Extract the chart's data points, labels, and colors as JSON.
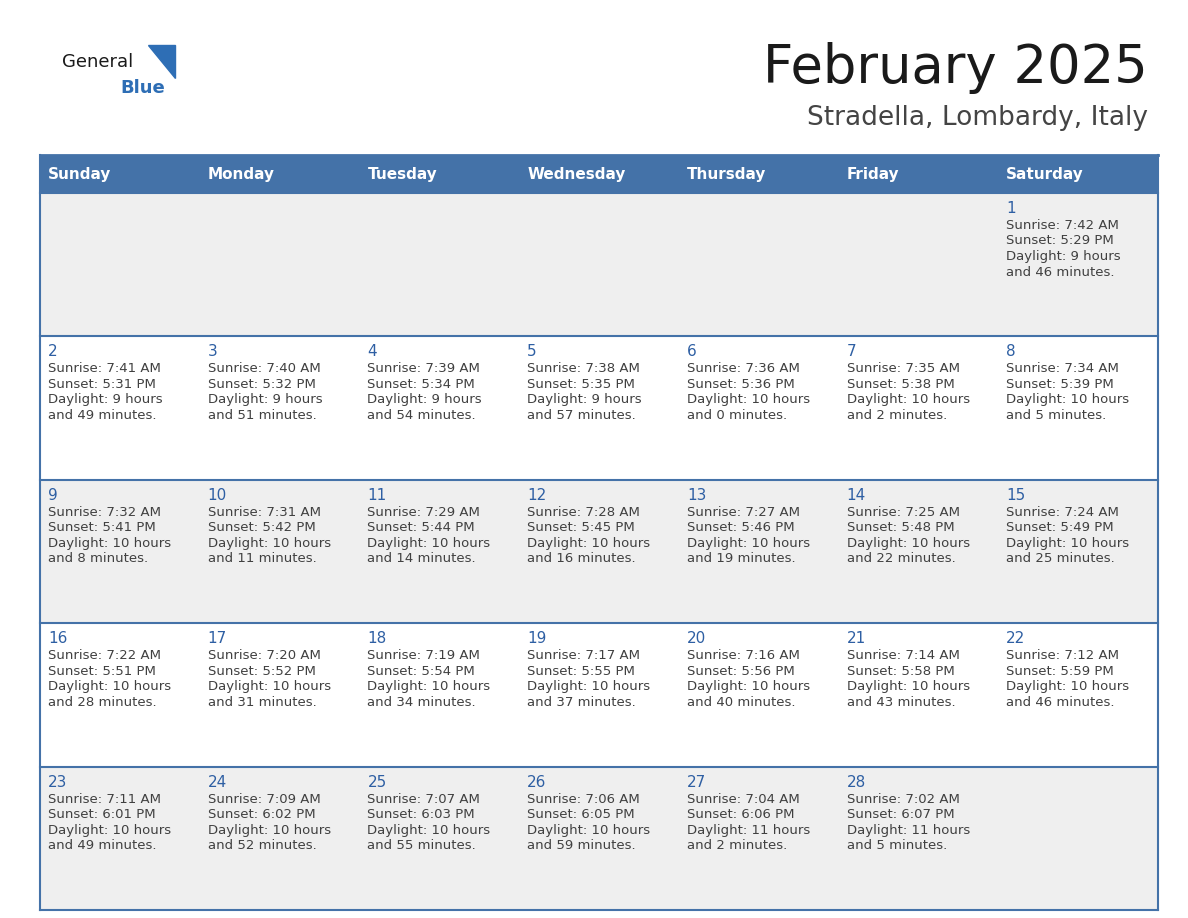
{
  "title": "February 2025",
  "subtitle": "Stradella, Lombardy, Italy",
  "days_of_week": [
    "Sunday",
    "Monday",
    "Tuesday",
    "Wednesday",
    "Thursday",
    "Friday",
    "Saturday"
  ],
  "header_bg": "#4472a8",
  "header_text": "#ffffff",
  "cell_bg_odd": "#efefef",
  "cell_bg_even": "#ffffff",
  "day_text_color": "#2e5fa3",
  "info_text_color": "#404040",
  "border_color": "#4472a8",
  "title_color": "#1a1a1a",
  "subtitle_color": "#444444",
  "logo_general_color": "#1a1a1a",
  "logo_blue_color": "#2e6eb5",
  "logo_triangle_color": "#2e6eb5",
  "calendar_data": [
    [
      null,
      null,
      null,
      null,
      null,
      null,
      {
        "day": "1",
        "sunrise": "7:42 AM",
        "sunset": "5:29 PM",
        "daylight": "9 hours",
        "daylight2": "and 46 minutes."
      }
    ],
    [
      {
        "day": "2",
        "sunrise": "7:41 AM",
        "sunset": "5:31 PM",
        "daylight": "9 hours",
        "daylight2": "and 49 minutes."
      },
      {
        "day": "3",
        "sunrise": "7:40 AM",
        "sunset": "5:32 PM",
        "daylight": "9 hours",
        "daylight2": "and 51 minutes."
      },
      {
        "day": "4",
        "sunrise": "7:39 AM",
        "sunset": "5:34 PM",
        "daylight": "9 hours",
        "daylight2": "and 54 minutes."
      },
      {
        "day": "5",
        "sunrise": "7:38 AM",
        "sunset": "5:35 PM",
        "daylight": "9 hours",
        "daylight2": "and 57 minutes."
      },
      {
        "day": "6",
        "sunrise": "7:36 AM",
        "sunset": "5:36 PM",
        "daylight": "10 hours",
        "daylight2": "and 0 minutes."
      },
      {
        "day": "7",
        "sunrise": "7:35 AM",
        "sunset": "5:38 PM",
        "daylight": "10 hours",
        "daylight2": "and 2 minutes."
      },
      {
        "day": "8",
        "sunrise": "7:34 AM",
        "sunset": "5:39 PM",
        "daylight": "10 hours",
        "daylight2": "and 5 minutes."
      }
    ],
    [
      {
        "day": "9",
        "sunrise": "7:32 AM",
        "sunset": "5:41 PM",
        "daylight": "10 hours",
        "daylight2": "and 8 minutes."
      },
      {
        "day": "10",
        "sunrise": "7:31 AM",
        "sunset": "5:42 PM",
        "daylight": "10 hours",
        "daylight2": "and 11 minutes."
      },
      {
        "day": "11",
        "sunrise": "7:29 AM",
        "sunset": "5:44 PM",
        "daylight": "10 hours",
        "daylight2": "and 14 minutes."
      },
      {
        "day": "12",
        "sunrise": "7:28 AM",
        "sunset": "5:45 PM",
        "daylight": "10 hours",
        "daylight2": "and 16 minutes."
      },
      {
        "day": "13",
        "sunrise": "7:27 AM",
        "sunset": "5:46 PM",
        "daylight": "10 hours",
        "daylight2": "and 19 minutes."
      },
      {
        "day": "14",
        "sunrise": "7:25 AM",
        "sunset": "5:48 PM",
        "daylight": "10 hours",
        "daylight2": "and 22 minutes."
      },
      {
        "day": "15",
        "sunrise": "7:24 AM",
        "sunset": "5:49 PM",
        "daylight": "10 hours",
        "daylight2": "and 25 minutes."
      }
    ],
    [
      {
        "day": "16",
        "sunrise": "7:22 AM",
        "sunset": "5:51 PM",
        "daylight": "10 hours",
        "daylight2": "and 28 minutes."
      },
      {
        "day": "17",
        "sunrise": "7:20 AM",
        "sunset": "5:52 PM",
        "daylight": "10 hours",
        "daylight2": "and 31 minutes."
      },
      {
        "day": "18",
        "sunrise": "7:19 AM",
        "sunset": "5:54 PM",
        "daylight": "10 hours",
        "daylight2": "and 34 minutes."
      },
      {
        "day": "19",
        "sunrise": "7:17 AM",
        "sunset": "5:55 PM",
        "daylight": "10 hours",
        "daylight2": "and 37 minutes."
      },
      {
        "day": "20",
        "sunrise": "7:16 AM",
        "sunset": "5:56 PM",
        "daylight": "10 hours",
        "daylight2": "and 40 minutes."
      },
      {
        "day": "21",
        "sunrise": "7:14 AM",
        "sunset": "5:58 PM",
        "daylight": "10 hours",
        "daylight2": "and 43 minutes."
      },
      {
        "day": "22",
        "sunrise": "7:12 AM",
        "sunset": "5:59 PM",
        "daylight": "10 hours",
        "daylight2": "and 46 minutes."
      }
    ],
    [
      {
        "day": "23",
        "sunrise": "7:11 AM",
        "sunset": "6:01 PM",
        "daylight": "10 hours",
        "daylight2": "and 49 minutes."
      },
      {
        "day": "24",
        "sunrise": "7:09 AM",
        "sunset": "6:02 PM",
        "daylight": "10 hours",
        "daylight2": "and 52 minutes."
      },
      {
        "day": "25",
        "sunrise": "7:07 AM",
        "sunset": "6:03 PM",
        "daylight": "10 hours",
        "daylight2": "and 55 minutes."
      },
      {
        "day": "26",
        "sunrise": "7:06 AM",
        "sunset": "6:05 PM",
        "daylight": "10 hours",
        "daylight2": "and 59 minutes."
      },
      {
        "day": "27",
        "sunrise": "7:04 AM",
        "sunset": "6:06 PM",
        "daylight": "11 hours",
        "daylight2": "and 2 minutes."
      },
      {
        "day": "28",
        "sunrise": "7:02 AM",
        "sunset": "6:07 PM",
        "daylight": "11 hours",
        "daylight2": "and 5 minutes."
      },
      null
    ]
  ]
}
